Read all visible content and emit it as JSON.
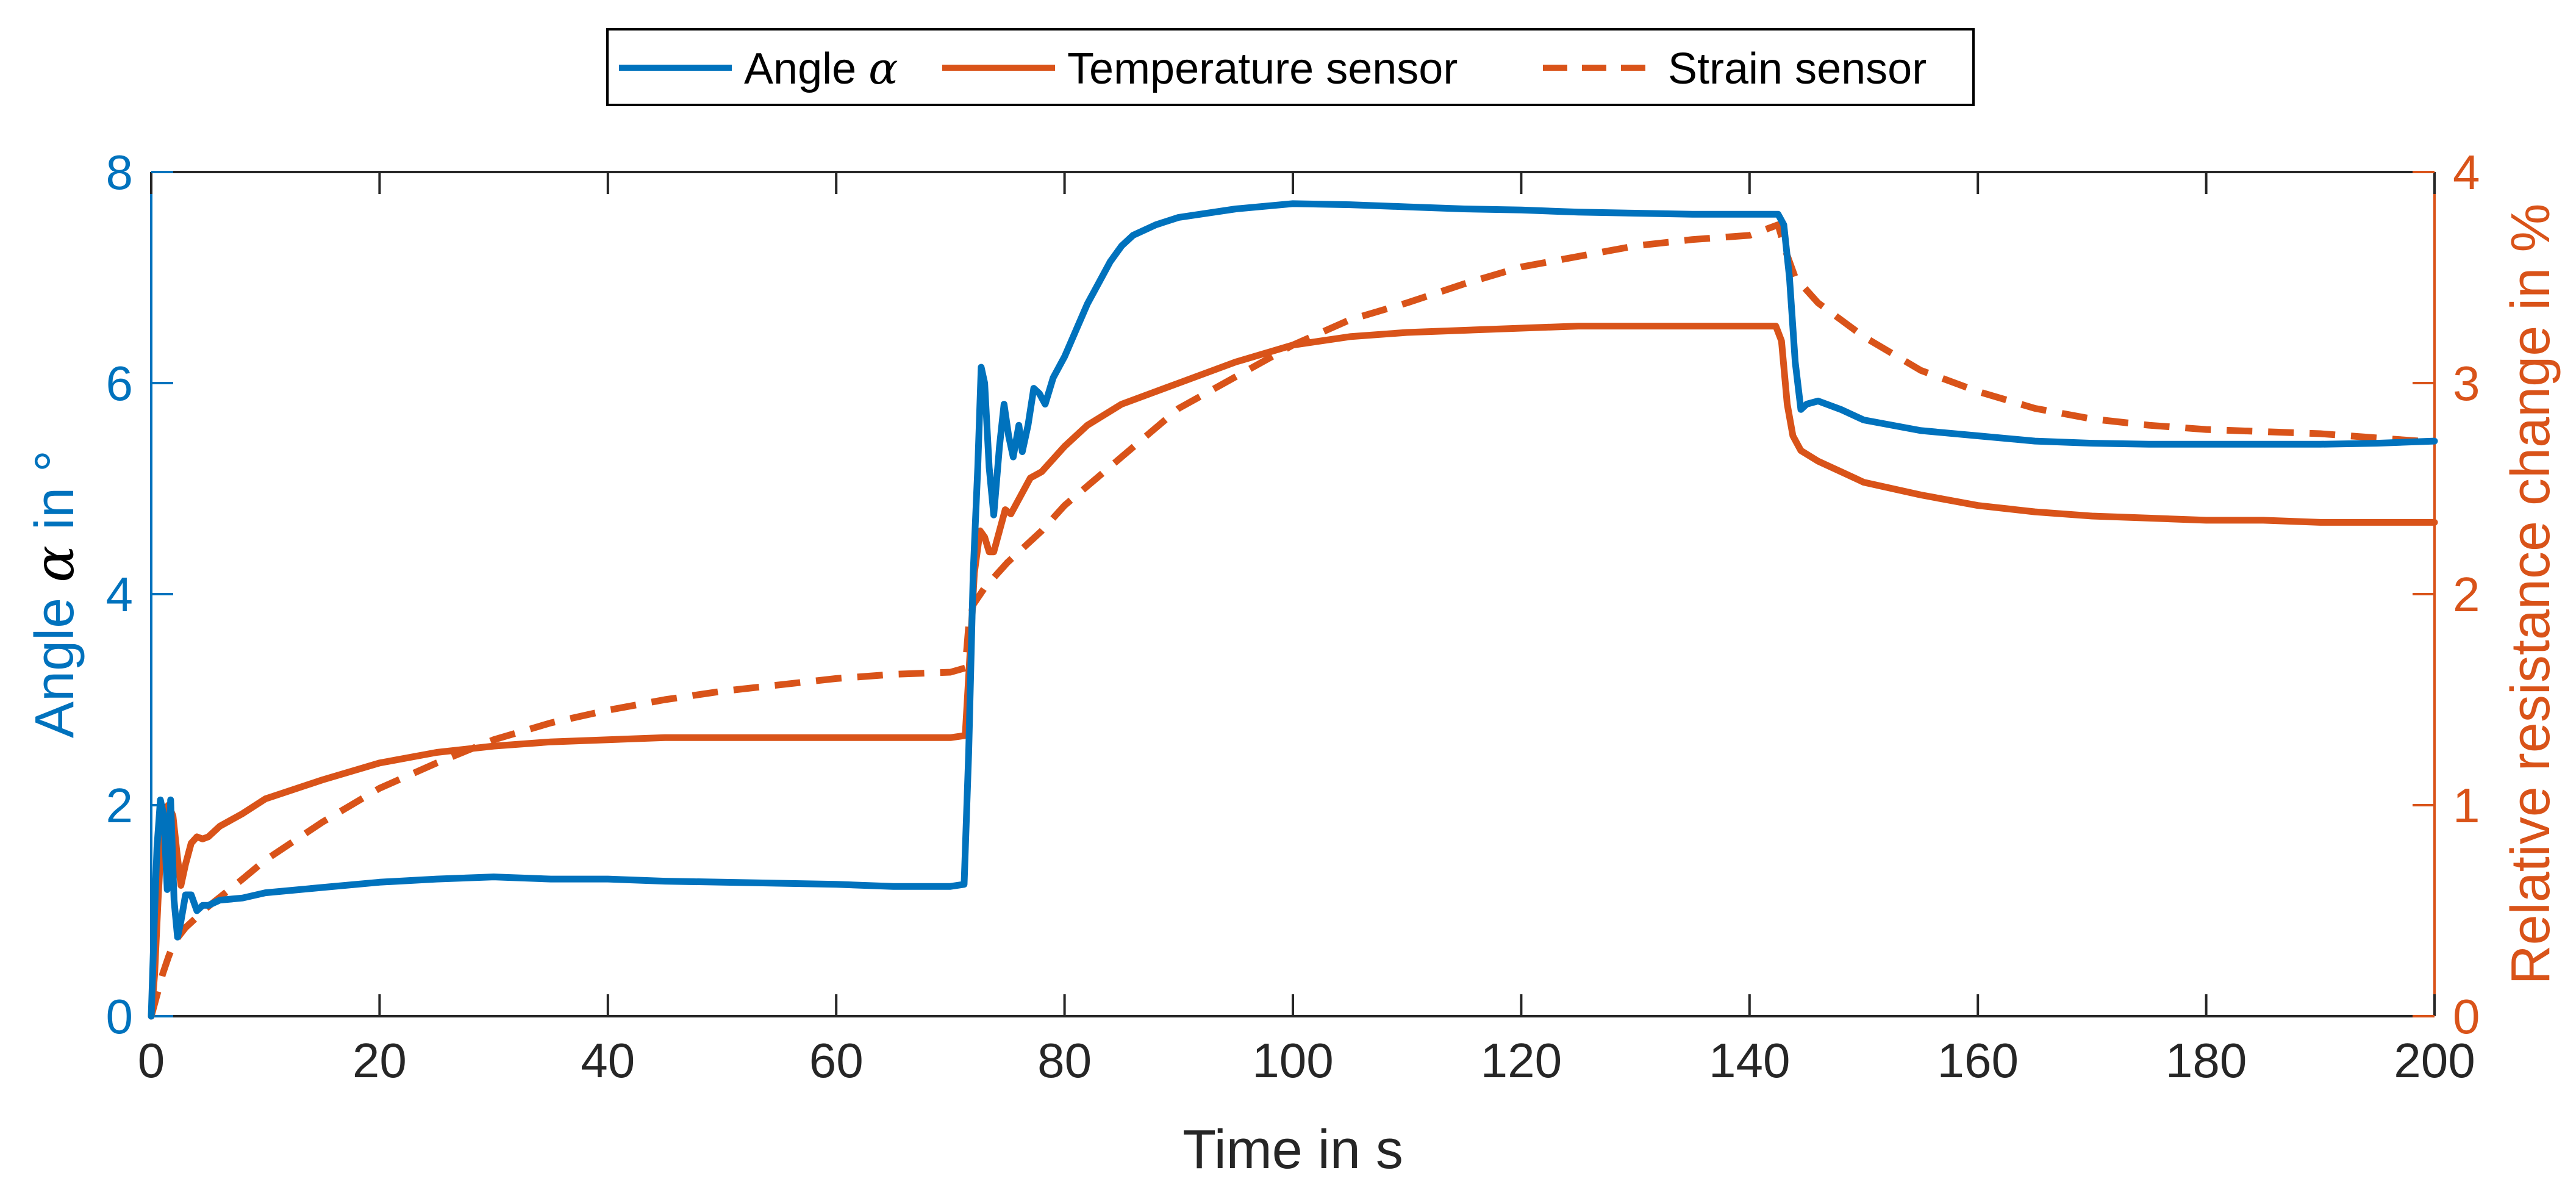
{
  "chart_data": {
    "type": "line",
    "title": "",
    "xlabel": "Time in s",
    "ylabel_left": "Angle α in °",
    "ylabel_left_parts": {
      "before": "Angle ",
      "symbol": "α",
      "after": " in °"
    },
    "ylabel_right": "Relative resistance change in %",
    "xlim": [
      0,
      200
    ],
    "ylim_left": [
      0,
      8
    ],
    "ylim_right": [
      0,
      4
    ],
    "xticks": [
      0,
      20,
      40,
      60,
      80,
      100,
      120,
      140,
      160,
      180,
      200
    ],
    "yticks_left": [
      0,
      2,
      4,
      6,
      8
    ],
    "yticks_right": [
      0,
      1,
      2,
      3,
      4
    ],
    "grid": false,
    "legend_position": "top-center",
    "colors": {
      "blue": "#0072BD",
      "orange": "#D95319",
      "axis": "#000000"
    },
    "series": [
      {
        "name": "Angle α",
        "legend_parts": {
          "before": "Angle ",
          "symbol": "α"
        },
        "axis": "left",
        "color": "#0072BD",
        "style": "solid",
        "points": [
          [
            0,
            0
          ],
          [
            0.3,
            1.0
          ],
          [
            0.5,
            1.6
          ],
          [
            0.8,
            2.05
          ],
          [
            1.1,
            1.9
          ],
          [
            1.4,
            1.2
          ],
          [
            1.7,
            2.05
          ],
          [
            2.0,
            1.1
          ],
          [
            2.3,
            0.75
          ],
          [
            2.6,
            0.9
          ],
          [
            3.0,
            1.15
          ],
          [
            3.5,
            1.15
          ],
          [
            4.0,
            1.0
          ],
          [
            4.5,
            1.05
          ],
          [
            5,
            1.05
          ],
          [
            6,
            1.1
          ],
          [
            8,
            1.12
          ],
          [
            10,
            1.17
          ],
          [
            15,
            1.22
          ],
          [
            20,
            1.27
          ],
          [
            25,
            1.3
          ],
          [
            30,
            1.32
          ],
          [
            35,
            1.3
          ],
          [
            40,
            1.3
          ],
          [
            45,
            1.28
          ],
          [
            50,
            1.27
          ],
          [
            55,
            1.26
          ],
          [
            60,
            1.25
          ],
          [
            65,
            1.23
          ],
          [
            70,
            1.23
          ],
          [
            71.2,
            1.25
          ],
          [
            71.6,
            2.5
          ],
          [
            72.0,
            4.2
          ],
          [
            72.4,
            5.2
          ],
          [
            72.7,
            6.15
          ],
          [
            73.0,
            6.0
          ],
          [
            73.4,
            5.2
          ],
          [
            73.8,
            4.75
          ],
          [
            74.3,
            5.4
          ],
          [
            74.7,
            5.8
          ],
          [
            75.1,
            5.5
          ],
          [
            75.5,
            5.3
          ],
          [
            76.0,
            5.6
          ],
          [
            76.3,
            5.35
          ],
          [
            76.8,
            5.6
          ],
          [
            77.3,
            5.95
          ],
          [
            77.8,
            5.9
          ],
          [
            78.3,
            5.8
          ],
          [
            79,
            6.05
          ],
          [
            80,
            6.25
          ],
          [
            81,
            6.5
          ],
          [
            82,
            6.75
          ],
          [
            83,
            6.95
          ],
          [
            84,
            7.15
          ],
          [
            85,
            7.3
          ],
          [
            86,
            7.4
          ],
          [
            88,
            7.5
          ],
          [
            90,
            7.57
          ],
          [
            95,
            7.65
          ],
          [
            100,
            7.7
          ],
          [
            105,
            7.69
          ],
          [
            110,
            7.67
          ],
          [
            115,
            7.65
          ],
          [
            120,
            7.64
          ],
          [
            125,
            7.62
          ],
          [
            130,
            7.61
          ],
          [
            135,
            7.6
          ],
          [
            140,
            7.6
          ],
          [
            142.5,
            7.6
          ],
          [
            143.0,
            7.5
          ],
          [
            143.5,
            7.0
          ],
          [
            144.0,
            6.2
          ],
          [
            144.5,
            5.75
          ],
          [
            145.0,
            5.8
          ],
          [
            146,
            5.83
          ],
          [
            148,
            5.75
          ],
          [
            150,
            5.65
          ],
          [
            155,
            5.55
          ],
          [
            160,
            5.5
          ],
          [
            165,
            5.45
          ],
          [
            170,
            5.43
          ],
          [
            175,
            5.42
          ],
          [
            180,
            5.42
          ],
          [
            185,
            5.42
          ],
          [
            190,
            5.42
          ],
          [
            195,
            5.43
          ],
          [
            200,
            5.45
          ]
        ]
      },
      {
        "name": "Temperature sensor",
        "axis": "right",
        "color": "#D95319",
        "style": "solid",
        "points": [
          [
            0,
            0
          ],
          [
            0.3,
            0.2
          ],
          [
            0.6,
            0.55
          ],
          [
            0.9,
            0.85
          ],
          [
            1.2,
            0.8
          ],
          [
            1.5,
            1.0
          ],
          [
            1.9,
            0.95
          ],
          [
            2.3,
            0.75
          ],
          [
            2.6,
            0.62
          ],
          [
            3.0,
            0.72
          ],
          [
            3.5,
            0.82
          ],
          [
            4.0,
            0.85
          ],
          [
            4.5,
            0.84
          ],
          [
            5,
            0.85
          ],
          [
            6,
            0.9
          ],
          [
            8,
            0.96
          ],
          [
            10,
            1.03
          ],
          [
            15,
            1.12
          ],
          [
            20,
            1.2
          ],
          [
            25,
            1.25
          ],
          [
            30,
            1.28
          ],
          [
            35,
            1.3
          ],
          [
            40,
            1.31
          ],
          [
            45,
            1.32
          ],
          [
            50,
            1.32
          ],
          [
            55,
            1.32
          ],
          [
            60,
            1.32
          ],
          [
            65,
            1.32
          ],
          [
            70,
            1.32
          ],
          [
            71.3,
            1.33
          ],
          [
            71.7,
            1.7
          ],
          [
            72.1,
            2.1
          ],
          [
            72.6,
            2.3
          ],
          [
            73.0,
            2.27
          ],
          [
            73.4,
            2.2
          ],
          [
            73.8,
            2.2
          ],
          [
            74.3,
            2.3
          ],
          [
            74.8,
            2.4
          ],
          [
            75.3,
            2.38
          ],
          [
            76,
            2.45
          ],
          [
            77,
            2.55
          ],
          [
            78,
            2.58
          ],
          [
            80,
            2.7
          ],
          [
            82,
            2.8
          ],
          [
            85,
            2.9
          ],
          [
            90,
            3.0
          ],
          [
            95,
            3.1
          ],
          [
            100,
            3.18
          ],
          [
            105,
            3.22
          ],
          [
            110,
            3.24
          ],
          [
            115,
            3.25
          ],
          [
            120,
            3.26
          ],
          [
            125,
            3.27
          ],
          [
            130,
            3.27
          ],
          [
            135,
            3.27
          ],
          [
            140,
            3.27
          ],
          [
            142.3,
            3.27
          ],
          [
            142.8,
            3.2
          ],
          [
            143.3,
            2.9
          ],
          [
            143.8,
            2.75
          ],
          [
            144.5,
            2.68
          ],
          [
            146,
            2.63
          ],
          [
            148,
            2.58
          ],
          [
            150,
            2.53
          ],
          [
            155,
            2.47
          ],
          [
            160,
            2.42
          ],
          [
            165,
            2.39
          ],
          [
            170,
            2.37
          ],
          [
            175,
            2.36
          ],
          [
            180,
            2.35
          ],
          [
            185,
            2.35
          ],
          [
            190,
            2.34
          ],
          [
            195,
            2.34
          ],
          [
            200,
            2.34
          ]
        ]
      },
      {
        "name": "Strain sensor",
        "axis": "right",
        "color": "#D95319",
        "style": "dashed",
        "points": [
          [
            0,
            0
          ],
          [
            0.5,
            0.1
          ],
          [
            1.0,
            0.2
          ],
          [
            1.5,
            0.28
          ],
          [
            2,
            0.35
          ],
          [
            3,
            0.42
          ],
          [
            5,
            0.52
          ],
          [
            8,
            0.65
          ],
          [
            10,
            0.74
          ],
          [
            15,
            0.92
          ],
          [
            20,
            1.08
          ],
          [
            25,
            1.2
          ],
          [
            30,
            1.31
          ],
          [
            35,
            1.39
          ],
          [
            40,
            1.45
          ],
          [
            45,
            1.5
          ],
          [
            50,
            1.54
          ],
          [
            55,
            1.57
          ],
          [
            60,
            1.6
          ],
          [
            65,
            1.62
          ],
          [
            70,
            1.63
          ],
          [
            71.3,
            1.65
          ],
          [
            71.6,
            1.85
          ],
          [
            72.0,
            1.95
          ],
          [
            73,
            2.03
          ],
          [
            75,
            2.15
          ],
          [
            78,
            2.3
          ],
          [
            80,
            2.42
          ],
          [
            85,
            2.65
          ],
          [
            90,
            2.88
          ],
          [
            95,
            3.03
          ],
          [
            100,
            3.18
          ],
          [
            105,
            3.3
          ],
          [
            110,
            3.38
          ],
          [
            115,
            3.47
          ],
          [
            120,
            3.55
          ],
          [
            125,
            3.6
          ],
          [
            130,
            3.65
          ],
          [
            135,
            3.68
          ],
          [
            140,
            3.7
          ],
          [
            142.5,
            3.75
          ],
          [
            143.2,
            3.62
          ],
          [
            144,
            3.5
          ],
          [
            146,
            3.38
          ],
          [
            150,
            3.22
          ],
          [
            155,
            3.06
          ],
          [
            160,
            2.96
          ],
          [
            165,
            2.88
          ],
          [
            170,
            2.83
          ],
          [
            175,
            2.8
          ],
          [
            180,
            2.78
          ],
          [
            185,
            2.77
          ],
          [
            190,
            2.76
          ],
          [
            195,
            2.74
          ],
          [
            200,
            2.72
          ]
        ]
      }
    ]
  }
}
